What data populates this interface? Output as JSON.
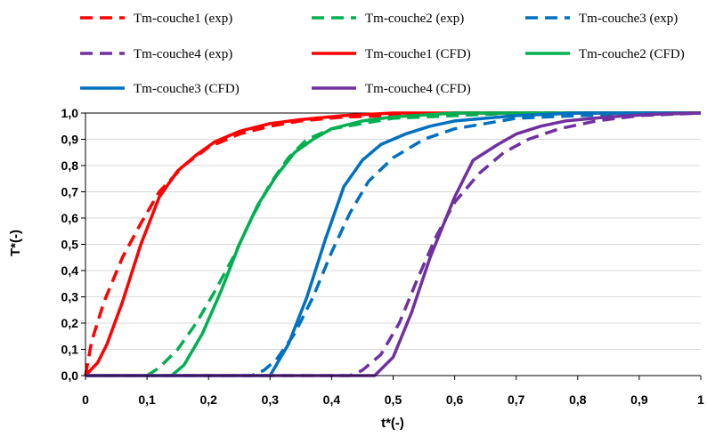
{
  "chart_data": {
    "type": "line",
    "title": "",
    "xlabel": "t*(-)",
    "ylabel": "T*(-)",
    "xlim": [
      0,
      1
    ],
    "ylim": [
      0,
      1
    ],
    "x_ticks": [
      "0",
      "0,1",
      "0,2",
      "0,3",
      "0,4",
      "0,5",
      "0,6",
      "0,7",
      "0,8",
      "0,9",
      "1"
    ],
    "y_ticks": [
      "0,0",
      "0,1",
      "0,2",
      "0,3",
      "0,4",
      "0,5",
      "0,6",
      "0,7",
      "0,8",
      "0,9",
      "1,0"
    ],
    "grid": "horizontal",
    "legend_position": "top",
    "series": [
      {
        "name": "Tm-couche1 (exp)",
        "color": "#ff0000",
        "style": "dashed",
        "points": [
          [
            0,
            0
          ],
          [
            0.01,
            0.13
          ],
          [
            0.03,
            0.28
          ],
          [
            0.06,
            0.45
          ],
          [
            0.09,
            0.58
          ],
          [
            0.12,
            0.7
          ],
          [
            0.16,
            0.8
          ],
          [
            0.2,
            0.87
          ],
          [
            0.25,
            0.92
          ],
          [
            0.3,
            0.95
          ],
          [
            0.35,
            0.97
          ],
          [
            0.42,
            0.985
          ],
          [
            0.5,
            0.99
          ],
          [
            0.6,
            1
          ],
          [
            1,
            1
          ]
        ]
      },
      {
        "name": "Tm-couche2 (exp)",
        "color": "#00b050",
        "style": "dashed",
        "points": [
          [
            0.1,
            0
          ],
          [
            0.12,
            0.03
          ],
          [
            0.15,
            0.1
          ],
          [
            0.18,
            0.2
          ],
          [
            0.21,
            0.32
          ],
          [
            0.24,
            0.45
          ],
          [
            0.27,
            0.6
          ],
          [
            0.3,
            0.73
          ],
          [
            0.33,
            0.83
          ],
          [
            0.36,
            0.9
          ],
          [
            0.4,
            0.94
          ],
          [
            0.45,
            0.96
          ],
          [
            0.5,
            0.98
          ],
          [
            0.6,
            0.99
          ],
          [
            0.7,
            1
          ],
          [
            1,
            1
          ]
        ]
      },
      {
        "name": "Tm-couche3 (exp)",
        "color": "#0070c0",
        "style": "dashed",
        "points": [
          [
            0,
            0
          ],
          [
            0.27,
            0
          ],
          [
            0.29,
            0.02
          ],
          [
            0.31,
            0.06
          ],
          [
            0.34,
            0.16
          ],
          [
            0.37,
            0.3
          ],
          [
            0.4,
            0.47
          ],
          [
            0.43,
            0.62
          ],
          [
            0.46,
            0.74
          ],
          [
            0.5,
            0.83
          ],
          [
            0.55,
            0.9
          ],
          [
            0.6,
            0.94
          ],
          [
            0.65,
            0.96
          ],
          [
            0.7,
            0.98
          ],
          [
            0.8,
            0.99
          ],
          [
            1,
            1
          ]
        ]
      },
      {
        "name": "Tm-couche4 (exp)",
        "color": "#7030a0",
        "style": "dashed",
        "points": [
          [
            0,
            0
          ],
          [
            0.43,
            0
          ],
          [
            0.45,
            0.02
          ],
          [
            0.48,
            0.08
          ],
          [
            0.51,
            0.2
          ],
          [
            0.54,
            0.37
          ],
          [
            0.57,
            0.53
          ],
          [
            0.6,
            0.66
          ],
          [
            0.64,
            0.77
          ],
          [
            0.68,
            0.85
          ],
          [
            0.72,
            0.9
          ],
          [
            0.77,
            0.94
          ],
          [
            0.83,
            0.97
          ],
          [
            0.9,
            0.99
          ],
          [
            1,
            1
          ]
        ]
      },
      {
        "name": "Tm-couche1 (CFD)",
        "color": "#ff0000",
        "style": "solid",
        "points": [
          [
            0,
            0
          ],
          [
            0.02,
            0.05
          ],
          [
            0.035,
            0.12
          ],
          [
            0.06,
            0.28
          ],
          [
            0.09,
            0.5
          ],
          [
            0.12,
            0.68
          ],
          [
            0.15,
            0.78
          ],
          [
            0.18,
            0.84
          ],
          [
            0.21,
            0.89
          ],
          [
            0.25,
            0.93
          ],
          [
            0.3,
            0.96
          ],
          [
            0.35,
            0.975
          ],
          [
            0.42,
            0.99
          ],
          [
            0.5,
            1
          ],
          [
            1,
            1
          ]
        ]
      },
      {
        "name": "Tm-couche2 (CFD)",
        "color": "#00b050",
        "style": "solid",
        "points": [
          [
            0,
            0
          ],
          [
            0.14,
            0
          ],
          [
            0.16,
            0.04
          ],
          [
            0.19,
            0.16
          ],
          [
            0.22,
            0.32
          ],
          [
            0.25,
            0.5
          ],
          [
            0.28,
            0.65
          ],
          [
            0.31,
            0.76
          ],
          [
            0.34,
            0.85
          ],
          [
            0.37,
            0.9
          ],
          [
            0.4,
            0.94
          ],
          [
            0.45,
            0.97
          ],
          [
            0.5,
            0.985
          ],
          [
            0.6,
            1
          ],
          [
            1,
            1
          ]
        ]
      },
      {
        "name": "Tm-couche3 (CFD)",
        "color": "#0070c0",
        "style": "solid",
        "points": [
          [
            0,
            0
          ],
          [
            0.3,
            0
          ],
          [
            0.33,
            0.12
          ],
          [
            0.36,
            0.3
          ],
          [
            0.39,
            0.52
          ],
          [
            0.42,
            0.72
          ],
          [
            0.45,
            0.82
          ],
          [
            0.48,
            0.88
          ],
          [
            0.52,
            0.92
          ],
          [
            0.56,
            0.95
          ],
          [
            0.6,
            0.97
          ],
          [
            0.65,
            0.98
          ],
          [
            0.7,
            0.99
          ],
          [
            0.8,
            1
          ],
          [
            1,
            1
          ]
        ]
      },
      {
        "name": "Tm-couche4 (CFD)",
        "color": "#7030a0",
        "style": "solid",
        "points": [
          [
            0,
            0
          ],
          [
            0.47,
            0
          ],
          [
            0.5,
            0.07
          ],
          [
            0.53,
            0.24
          ],
          [
            0.56,
            0.45
          ],
          [
            0.6,
            0.68
          ],
          [
            0.63,
            0.82
          ],
          [
            0.67,
            0.88
          ],
          [
            0.7,
            0.92
          ],
          [
            0.74,
            0.95
          ],
          [
            0.78,
            0.97
          ],
          [
            0.85,
            0.985
          ],
          [
            0.92,
            0.995
          ],
          [
            1,
            1
          ]
        ]
      }
    ]
  }
}
